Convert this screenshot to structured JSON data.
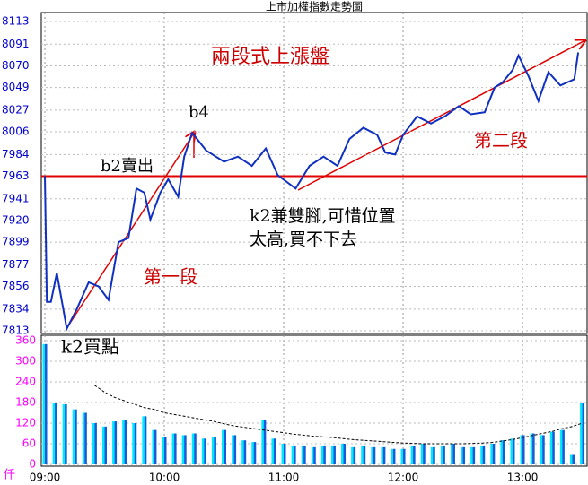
{
  "chart_data": [
    {
      "type": "line",
      "title": "上市加權指數走勢圖",
      "x": [
        0,
        1,
        3,
        6,
        11,
        16,
        22,
        27,
        32,
        37,
        42,
        46,
        50,
        53,
        58,
        62,
        67,
        70,
        74,
        81,
        90,
        97,
        104,
        111,
        117,
        126,
        133,
        140,
        147,
        153,
        160,
        167,
        171,
        176,
        180,
        187,
        194,
        201,
        208,
        214,
        221,
        226,
        230,
        235,
        238,
        243,
        248,
        253,
        259,
        266,
        268
      ],
      "values": [
        7963,
        7841,
        7841,
        7869,
        7815,
        7834,
        7860,
        7856,
        7843,
        7899,
        7903,
        7951,
        7947,
        7921,
        7947,
        7960,
        7943,
        7982,
        8005,
        7988,
        7977,
        7982,
        7973,
        7990,
        7964,
        7951,
        7973,
        7982,
        7973,
        7999,
        8010,
        8003,
        7986,
        7984,
        8003,
        8021,
        8014,
        8021,
        8031,
        8023,
        8025,
        8049,
        8054,
        8066,
        8080,
        8060,
        8036,
        8064,
        8051,
        8057,
        8083
      ],
      "color": "#1030c0",
      "reference": 7963,
      "reference_color": "#e00000",
      "xlim": [
        0,
        272
      ],
      "ylim": [
        7813,
        8113
      ],
      "yticks": [
        7813,
        7834,
        7856,
        7877,
        7899,
        7920,
        7941,
        7963,
        7984,
        8006,
        8027,
        8049,
        8070,
        8091,
        8113
      ],
      "annotations": [
        "兩段式上漲盤",
        "b4",
        "b2賣出",
        "k2兼雙腳,可惜位置",
        "太高,買不下去",
        "第一段",
        "第二段",
        "k2買點"
      ]
    },
    {
      "type": "bar",
      "y_unit": "仟",
      "x": [
        0,
        5,
        10,
        15,
        20,
        25,
        30,
        35,
        40,
        45,
        50,
        55,
        60,
        65,
        70,
        75,
        80,
        85,
        90,
        95,
        100,
        105,
        110,
        115,
        120,
        125,
        130,
        135,
        140,
        145,
        150,
        155,
        160,
        165,
        170,
        175,
        180,
        185,
        190,
        195,
        200,
        205,
        210,
        215,
        220,
        225,
        230,
        235,
        240,
        245,
        250,
        255,
        260,
        265,
        270
      ],
      "values": [
        350,
        180,
        175,
        160,
        150,
        120,
        110,
        125,
        130,
        120,
        140,
        100,
        80,
        90,
        85,
        90,
        75,
        80,
        100,
        85,
        70,
        65,
        130,
        75,
        60,
        55,
        55,
        50,
        55,
        55,
        60,
        50,
        55,
        50,
        50,
        45,
        45,
        55,
        60,
        50,
        55,
        60,
        50,
        50,
        55,
        60,
        70,
        75,
        85,
        90,
        85,
        95,
        100,
        30,
        180
      ],
      "ma": [
        null,
        null,
        null,
        null,
        null,
        230,
        210,
        195,
        185,
        175,
        165,
        160,
        150,
        145,
        140,
        135,
        130,
        125,
        118,
        112,
        108,
        104,
        100,
        96,
        92,
        88,
        85,
        82,
        80,
        78,
        75,
        72,
        70,
        68,
        66,
        64,
        62,
        61,
        60,
        60,
        60,
        60,
        60,
        61,
        62,
        64,
        68,
        72,
        78,
        84,
        90,
        96,
        104,
        110,
        120
      ],
      "color": "#1a5ad8",
      "highlight": "#00e8ff",
      "ma_color": "#000000",
      "xlim": [
        0,
        272
      ],
      "ylim": [
        0,
        360
      ],
      "yticks": [
        0,
        60,
        120,
        180,
        240,
        300,
        360
      ],
      "xticks": [
        {
          "value": 0,
          "label": "09:00"
        },
        {
          "value": 60,
          "label": "10:00"
        },
        {
          "value": 120,
          "label": "11:00"
        },
        {
          "value": 180,
          "label": "12:00"
        },
        {
          "value": 240,
          "label": "13:00"
        }
      ]
    }
  ]
}
